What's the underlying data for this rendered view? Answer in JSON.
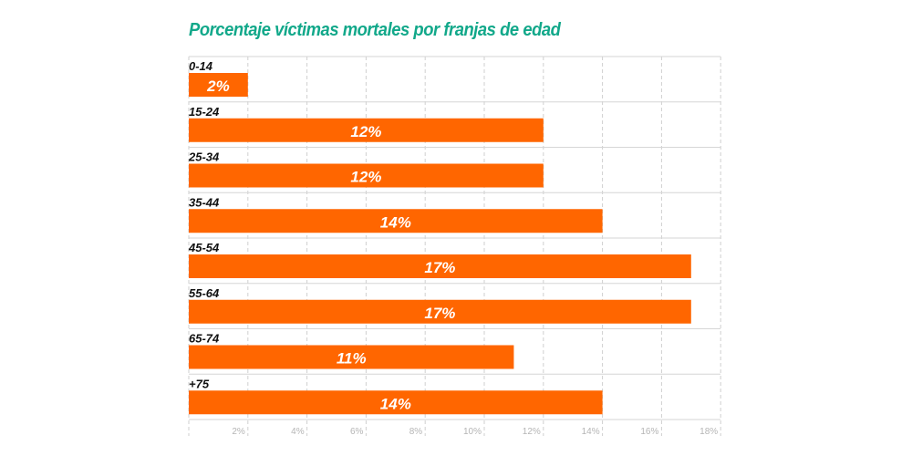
{
  "chart_data": {
    "type": "bar",
    "orientation": "horizontal",
    "title": "Porcentaje víctimas mortales por franjas de edad",
    "categories": [
      "0-14",
      "15-24",
      "25-34",
      "35-44",
      "45-54",
      "55-64",
      "65-74",
      "+75"
    ],
    "values": [
      2,
      12,
      12,
      14,
      17,
      17,
      11,
      14
    ],
    "data_labels": [
      "2%",
      "12%",
      "12%",
      "14%",
      "17%",
      "17%",
      "11%",
      "14%"
    ],
    "xlim": [
      0,
      18
    ],
    "xticks": [
      "2%",
      "4%",
      "6%",
      "8%",
      "10%",
      "12%",
      "14%",
      "16%",
      "18%"
    ],
    "xlabel": "",
    "ylabel": "",
    "grid": true,
    "colors": {
      "bar": "#ff6600",
      "title": "#12a88a",
      "grid": "#cccccc"
    }
  }
}
